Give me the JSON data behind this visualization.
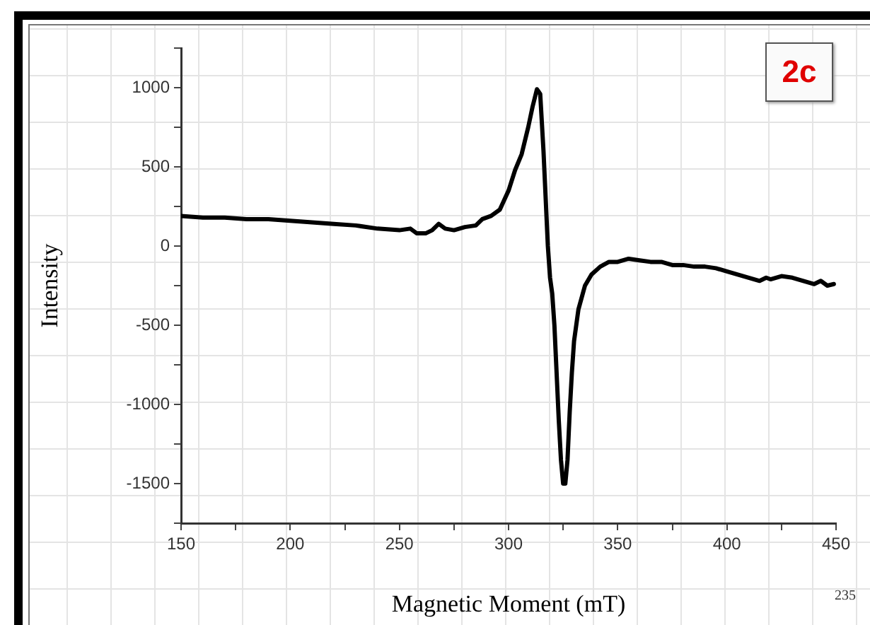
{
  "chart_data": {
    "type": "line",
    "xlabel": "Magnetic Moment (mT)",
    "ylabel": "Intensity",
    "annotations": [
      "2c",
      "235"
    ],
    "x": [
      150,
      160,
      170,
      180,
      190,
      200,
      210,
      220,
      230,
      240,
      250,
      255,
      258,
      262,
      265,
      268,
      271,
      275,
      280,
      285,
      288,
      292,
      296,
      300,
      303,
      306,
      309,
      311,
      313,
      314.5,
      316,
      317,
      318,
      319,
      320,
      321,
      322,
      323,
      324,
      325,
      326,
      327,
      328,
      329,
      330,
      332,
      335,
      338,
      342,
      346,
      350,
      355,
      360,
      365,
      370,
      375,
      380,
      385,
      390,
      395,
      400,
      405,
      410,
      415,
      418,
      420,
      425,
      430,
      435,
      440,
      443,
      446,
      449
    ],
    "series": [
      {
        "color": "#000000",
        "values": [
          190,
          180,
          180,
          170,
          170,
          160,
          150,
          140,
          130,
          110,
          100,
          110,
          80,
          80,
          100,
          140,
          110,
          100,
          120,
          130,
          170,
          190,
          230,
          350,
          480,
          580,
          750,
          880,
          990,
          960,
          600,
          300,
          0,
          -200,
          -300,
          -500,
          -800,
          -1100,
          -1350,
          -1500,
          -1500,
          -1350,
          -1050,
          -800,
          -600,
          -400,
          -250,
          -180,
          -130,
          -100,
          -100,
          -80,
          -90,
          -100,
          -100,
          -120,
          -120,
          -130,
          -130,
          -140,
          -160,
          -180,
          -200,
          -220,
          -200,
          -210,
          -190,
          -200,
          -220,
          -240,
          -220,
          -250,
          -240
        ]
      }
    ],
    "xlim": [
      150,
      450
    ],
    "xticks": [
      150,
      {
        "value": 175,
        "label": null
      },
      200,
      {
        "value": 225,
        "label": null
      },
      250,
      {
        "value": 275,
        "label": null
      },
      300,
      {
        "value": 325,
        "label": null
      },
      350,
      {
        "value": 375,
        "label": null
      },
      400,
      {
        "value": 425,
        "label": null
      },
      450
    ],
    "ylim": [
      -1750,
      1250
    ],
    "yticks": [
      {
        "value": -1750,
        "label": null
      },
      -1500,
      {
        "value": -1250,
        "label": null
      },
      -1000,
      {
        "value": -750,
        "label": null
      },
      -500,
      {
        "value": -250,
        "label": null
      },
      0,
      {
        "value": 250,
        "label": null
      },
      500,
      {
        "value": 750,
        "label": null
      },
      1000,
      {
        "value": 1250,
        "label": null
      }
    ],
    "grid": false,
    "legend": false,
    "marker": "none",
    "line_style": "solid"
  }
}
